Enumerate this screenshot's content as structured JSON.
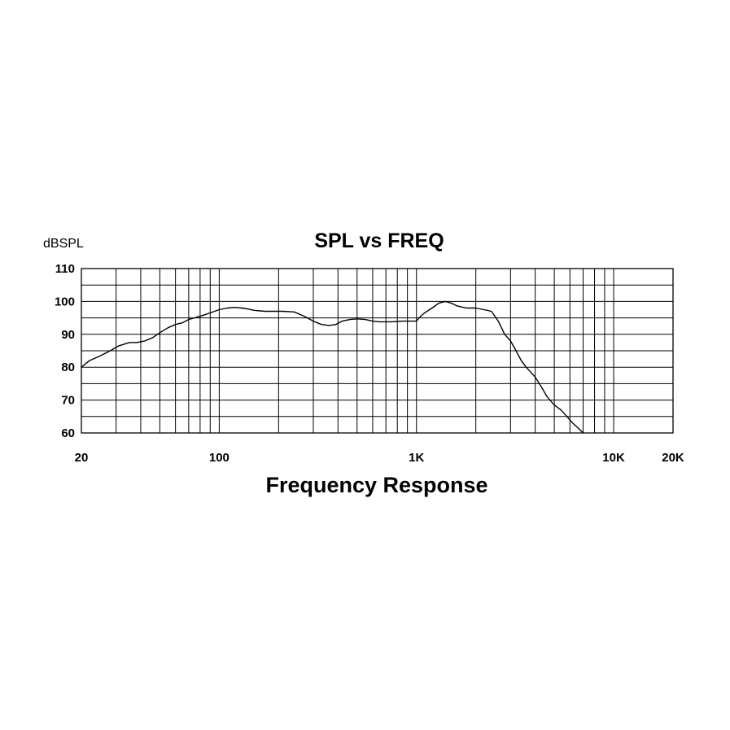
{
  "chart_data": {
    "type": "line",
    "title": "SPL vs FREQ",
    "ylabel": "dBSPL",
    "xlabel": "Frequency Response",
    "x_scale": "log",
    "xlim": [
      20,
      20000
    ],
    "ylim": [
      60,
      110
    ],
    "grid": true,
    "x_ticks": [
      {
        "value": 20,
        "label": "20"
      },
      {
        "value": 100,
        "label": "100"
      },
      {
        "value": 1000,
        "label": "1K"
      },
      {
        "value": 10000,
        "label": "10K"
      },
      {
        "value": 20000,
        "label": "20K"
      }
    ],
    "y_ticks": [
      {
        "value": 60,
        "label": "60"
      },
      {
        "value": 70,
        "label": "70"
      },
      {
        "value": 80,
        "label": "80"
      },
      {
        "value": 90,
        "label": "90"
      },
      {
        "value": 100,
        "label": "100"
      },
      {
        "value": 110,
        "label": "110"
      }
    ],
    "series": [
      {
        "x": [
          20,
          22,
          25,
          28,
          31,
          35,
          38,
          42,
          46,
          50,
          55,
          60,
          65,
          70,
          75,
          80,
          90,
          100,
          110,
          120,
          130,
          140,
          150,
          170,
          190,
          210,
          240,
          270,
          300,
          330,
          360,
          390,
          420,
          460,
          500,
          550,
          600,
          650,
          700,
          750,
          800,
          850,
          900,
          950,
          1000,
          1050,
          1100,
          1200,
          1300,
          1400,
          1500,
          1600,
          1700,
          1800,
          2000,
          2200,
          2400,
          2600,
          2800,
          3000,
          3200,
          3400,
          3600,
          3800,
          4000,
          4300,
          4600,
          5000,
          5400,
          5800,
          6200,
          6600,
          7000
        ],
        "values": [
          80,
          82,
          83.5,
          85,
          86.5,
          87.5,
          87.5,
          88,
          89,
          90.5,
          92,
          93,
          93.5,
          94.5,
          95,
          95.5,
          96.5,
          97.5,
          98,
          98.2,
          98,
          97.7,
          97.3,
          97,
          97,
          97,
          96.8,
          95.5,
          94,
          93,
          92.7,
          93,
          94,
          94.5,
          94.7,
          94.5,
          94,
          93.8,
          93.8,
          93.8,
          93.9,
          94,
          94,
          94,
          94,
          95.5,
          96.5,
          98,
          99.5,
          100,
          99.5,
          98.7,
          98.3,
          98,
          98,
          97.5,
          97,
          94,
          90,
          88,
          85,
          82,
          80,
          78.5,
          77,
          74,
          71,
          68.5,
          67,
          65,
          63,
          61.5,
          60
        ]
      }
    ]
  }
}
